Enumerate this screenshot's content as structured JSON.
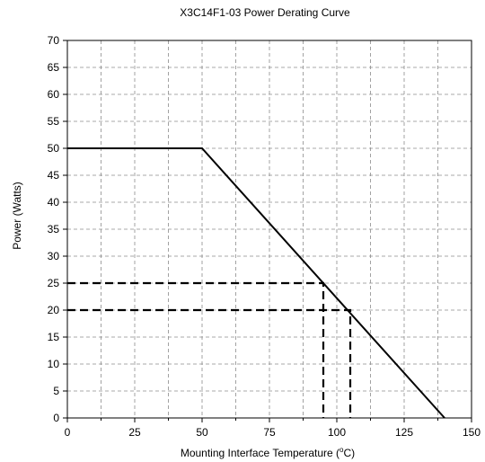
{
  "chart_data": {
    "type": "line",
    "title": "X3C14F1-03 Power Derating Curve",
    "xlabel": "Mounting Interface Temperature (",
    "xlabel_sup": "o",
    "xlabel_tail": "C)",
    "ylabel": "Power (Watts)",
    "xlim": [
      0,
      150
    ],
    "ylim": [
      0,
      70
    ],
    "x_ticks": [
      0,
      25,
      50,
      75,
      100,
      125,
      150
    ],
    "y_ticks": [
      0,
      5,
      10,
      15,
      20,
      25,
      30,
      35,
      40,
      45,
      50,
      55,
      60,
      65,
      70
    ],
    "grid": true,
    "series": [
      {
        "x": [
          0,
          50,
          140
        ],
        "y": [
          50,
          50,
          0
        ],
        "color": "#000000"
      }
    ],
    "reference_lines": [
      {
        "x": [
          0,
          95,
          95
        ],
        "y": [
          25,
          25,
          0
        ],
        "color": "#000000",
        "style": "dashed"
      },
      {
        "x": [
          0,
          105,
          105
        ],
        "y": [
          20,
          20,
          0
        ],
        "color": "#000000",
        "style": "dashed"
      }
    ]
  }
}
